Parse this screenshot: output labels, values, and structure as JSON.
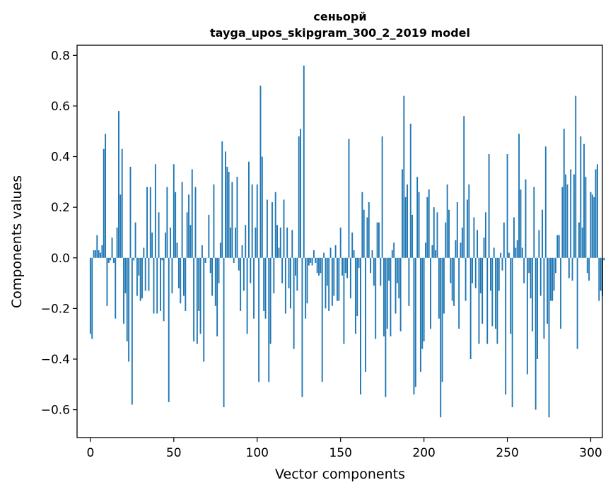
{
  "chart_data": {
    "type": "bar",
    "title_line1": "сеньорй",
    "title_line2": "tayga_upos_skipgram_300_2_2019 model",
    "xlabel": "Vector components",
    "ylabel": "Components values",
    "xlim": [
      -8,
      307
    ],
    "ylim": [
      -0.71,
      0.84
    ],
    "xticks": [
      0,
      50,
      100,
      150,
      200,
      250,
      300
    ],
    "xtick_labels": [
      "0",
      "50",
      "100",
      "150",
      "200",
      "250",
      "300"
    ],
    "yticks": [
      -0.6,
      -0.4,
      -0.2,
      0.0,
      0.2,
      0.4,
      0.6,
      0.8
    ],
    "ytick_labels": [
      "−0.6",
      "−0.4",
      "−0.2",
      "0.0",
      "0.2",
      "0.4",
      "0.6",
      "0.8"
    ],
    "bar_color": "#1f77b4",
    "grid": false,
    "values": [
      -0.3,
      -0.32,
      0.03,
      0.03,
      0.09,
      0.03,
      0.02,
      0.05,
      0.43,
      0.49,
      -0.19,
      -0.02,
      -0.01,
      0.08,
      -0.02,
      -0.24,
      0.12,
      0.58,
      0.25,
      0.43,
      -0.26,
      -0.14,
      -0.33,
      -0.41,
      0.36,
      -0.58,
      -0.01,
      0.14,
      -0.15,
      -0.07,
      -0.17,
      -0.16,
      0.04,
      -0.13,
      0.28,
      -0.13,
      0.28,
      0.1,
      -0.22,
      0.37,
      -0.22,
      0.18,
      -0.21,
      -0.01,
      -0.25,
      0.1,
      0.28,
      -0.57,
      0.12,
      -0.14,
      0.37,
      0.26,
      0.06,
      -0.12,
      -0.18,
      0.3,
      -0.15,
      -0.21,
      0.18,
      0.25,
      0.13,
      0.35,
      -0.33,
      0.28,
      -0.34,
      -0.21,
      -0.3,
      0.05,
      -0.41,
      -0.02,
      0.0,
      0.17,
      -0.06,
      -0.15,
      0.29,
      -0.19,
      -0.31,
      -0.1,
      0.06,
      0.46,
      -0.59,
      0.42,
      0.36,
      0.34,
      0.12,
      0.3,
      -0.02,
      0.12,
      0.32,
      -0.05,
      -0.21,
      0.05,
      -0.13,
      0.13,
      -0.3,
      0.38,
      -0.1,
      0.29,
      -0.24,
      0.12,
      0.29,
      -0.49,
      0.68,
      0.4,
      -0.21,
      -0.24,
      0.23,
      -0.49,
      -0.34,
      0.22,
      -0.14,
      0.26,
      0.13,
      0.04,
      0.12,
      -0.1,
      0.23,
      -0.22,
      0.12,
      -0.12,
      -0.2,
      0.11,
      -0.36,
      -0.07,
      -0.13,
      0.48,
      0.51,
      -0.55,
      0.76,
      -0.24,
      -0.18,
      -0.03,
      -0.02,
      -0.03,
      0.03,
      -0.02,
      -0.06,
      -0.07,
      -0.06,
      -0.49,
      0.02,
      -0.2,
      -0.11,
      -0.21,
      0.04,
      -0.19,
      -0.15,
      0.05,
      -0.17,
      -0.17,
      0.12,
      -0.07,
      -0.34,
      -0.06,
      -0.08,
      0.47,
      -0.16,
      0.1,
      0.03,
      -0.3,
      -0.23,
      -0.04,
      -0.54,
      0.26,
      0.19,
      -0.45,
      0.16,
      0.22,
      -0.06,
      0.03,
      -0.11,
      -0.32,
      0.14,
      0.14,
      -0.11,
      0.48,
      -0.31,
      -0.55,
      -0.28,
      -0.09,
      -0.31,
      0.03,
      0.06,
      -0.22,
      -0.1,
      -0.16,
      -0.29,
      0.35,
      0.64,
      0.24,
      0.29,
      -0.19,
      0.53,
      0.17,
      -0.54,
      -0.51,
      0.32,
      0.26,
      -0.45,
      -0.36,
      -0.33,
      0.06,
      0.24,
      0.27,
      -0.28,
      0.05,
      0.2,
      0.03,
      0.18,
      -0.24,
      -0.63,
      -0.49,
      -0.22,
      0.14,
      0.29,
      0.19,
      -0.1,
      -0.17,
      -0.19,
      0.07,
      0.22,
      -0.28,
      0.06,
      0.12,
      0.56,
      -0.17,
      0.23,
      0.29,
      -0.4,
      -0.1,
      0.16,
      -0.12,
      0.11,
      -0.34,
      -0.14,
      -0.26,
      0.08,
      0.18,
      -0.34,
      0.41,
      -0.13,
      -0.27,
      0.04,
      -0.28,
      -0.34,
      -0.13,
      0.02,
      -0.05,
      0.14,
      -0.54,
      0.41,
      0.02,
      -0.3,
      -0.59,
      0.16,
      0.04,
      0.07,
      0.49,
      0.27,
      0.04,
      -0.1,
      0.31,
      -0.46,
      -0.06,
      -0.16,
      -0.29,
      0.28,
      -0.6,
      -0.4,
      0.11,
      -0.15,
      0.19,
      -0.32,
      0.44,
      -0.26,
      -0.63,
      -0.17,
      -0.17,
      -0.13,
      -0.06,
      0.09,
      0.09,
      -0.28,
      0.28,
      0.51,
      0.33,
      0.29,
      -0.08,
      0.35,
      -0.09,
      0.33,
      0.64,
      -0.36,
      0.14,
      0.48,
      0.12,
      0.45,
      0.32,
      -0.06,
      -0.09,
      0.26,
      0.25,
      0.24,
      0.35,
      0.37,
      -0.17,
      -0.13,
      -0.15,
      -0.01
    ]
  }
}
